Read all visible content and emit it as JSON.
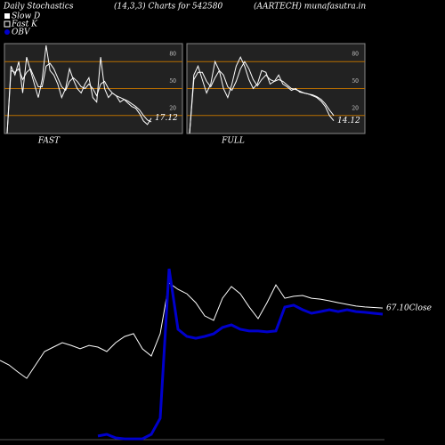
{
  "header": {
    "left": "Daily Stochastics",
    "middle": "(14,3,3) Charts for 542580",
    "right": "(AARTECH) munafasutra.in"
  },
  "chart_data": [
    {
      "type": "line",
      "title": "FAST",
      "ylim": [
        0,
        100
      ],
      "yticks": [
        20,
        50,
        80
      ],
      "grid": true,
      "series": [
        {
          "name": "Fast K",
          "color": "#ffffff",
          "values": [
            0,
            75,
            65,
            80,
            45,
            85,
            70,
            55,
            40,
            60,
            98,
            70,
            65,
            55,
            40,
            50,
            72,
            60,
            50,
            45,
            55,
            62,
            40,
            35,
            85,
            50,
            40,
            45,
            42,
            35,
            38,
            34,
            30,
            28,
            22,
            14,
            10,
            17.12
          ],
          "value_labels": [
            null,
            null,
            null,
            null,
            null,
            null,
            null,
            null,
            null,
            null,
            null,
            null,
            null,
            null,
            null,
            null,
            null,
            null,
            null,
            null,
            null,
            null,
            null,
            null,
            null,
            null,
            null,
            null,
            null,
            null,
            null,
            null,
            null,
            null,
            null,
            null,
            null,
            "17.12"
          ]
        },
        {
          "name": "Slow D",
          "color": "#ffffff",
          "values": [
            0,
            70,
            68,
            72,
            60,
            68,
            72,
            62,
            52,
            52,
            75,
            78,
            72,
            62,
            52,
            48,
            58,
            62,
            58,
            52,
            50,
            55,
            50,
            42,
            55,
            58,
            50,
            45,
            42,
            40,
            38,
            36,
            33,
            30,
            26,
            20,
            15,
            13
          ]
        }
      ]
    },
    {
      "type": "line",
      "title": "FULL",
      "ylim": [
        0,
        100
      ],
      "yticks": [
        20,
        50,
        80
      ],
      "grid": true,
      "series": [
        {
          "color": "#ffffff",
          "values": [
            0,
            65,
            75,
            60,
            45,
            55,
            80,
            70,
            50,
            40,
            55,
            75,
            85,
            75,
            60,
            50,
            55,
            70,
            68,
            55,
            58,
            65,
            55,
            52,
            48,
            50,
            46,
            45,
            44,
            42,
            40,
            36,
            30,
            20,
            14.12
          ],
          "value_labels": [
            null,
            null,
            null,
            null,
            null,
            null,
            null,
            null,
            null,
            null,
            null,
            null,
            null,
            null,
            null,
            null,
            null,
            null,
            null,
            null,
            null,
            null,
            null,
            null,
            null,
            null,
            null,
            null,
            null,
            null,
            null,
            null,
            null,
            null,
            "14.12"
          ]
        },
        {
          "color": "#ffffff",
          "values": [
            0,
            60,
            68,
            68,
            58,
            52,
            62,
            70,
            65,
            52,
            48,
            58,
            72,
            80,
            72,
            60,
            53,
            60,
            65,
            60,
            58,
            60,
            58,
            54,
            50,
            49,
            47,
            45,
            44,
            43,
            41,
            38,
            33,
            26,
            20
          ]
        }
      ]
    },
    {
      "type": "line",
      "ylim": [
        18,
        85
      ],
      "y2lim": [
        0,
        100
      ],
      "series": [
        {
          "name": "Close",
          "color": "#ffffff",
          "values": [
            48.3,
            46.7,
            44.2,
            41.9,
            46.7,
            51.5,
            53.1,
            54.7,
            53.7,
            52.5,
            53.7,
            53.1,
            51.5,
            54.7,
            56.9,
            57.9,
            52.5,
            49.9,
            57.9,
            76.1,
            73.8,
            72.2,
            69.0,
            64.3,
            62.7,
            70.6,
            74.8,
            72.2,
            67.5,
            63.3,
            69.0,
            75.4,
            70.6,
            71.3,
            71.6,
            70.6,
            70.3,
            69.7,
            69.0,
            68.4,
            67.8,
            67.5,
            67.3,
            67.1
          ],
          "value_labels": [
            null,
            null,
            null,
            null,
            null,
            null,
            null,
            null,
            null,
            null,
            null,
            null,
            null,
            null,
            null,
            null,
            null,
            null,
            null,
            null,
            null,
            null,
            null,
            null,
            null,
            null,
            null,
            null,
            null,
            null,
            null,
            null,
            null,
            null,
            null,
            null,
            null,
            null,
            null,
            null,
            null,
            null,
            null,
            "67.10"
          ]
        },
        {
          "name": "OBV",
          "color": "#0000cc",
          "axis": "y2",
          "values": [
            null,
            null,
            null,
            null,
            null,
            null,
            null,
            null,
            null,
            null,
            null,
            4.8,
            5.7,
            3.8,
            3.3,
            3.3,
            3.3,
            5.7,
            14.3,
            94.3,
            61.9,
            58.1,
            57.1,
            58.1,
            59.5,
            62.9,
            64.3,
            61.9,
            61.0,
            61.0,
            60.5,
            61.0,
            73.8,
            74.8,
            72.4,
            70.5,
            71.4,
            72.4,
            71.4,
            72.4,
            71.4,
            71.0,
            70.5,
            70.0
          ]
        }
      ]
    }
  ]
}
